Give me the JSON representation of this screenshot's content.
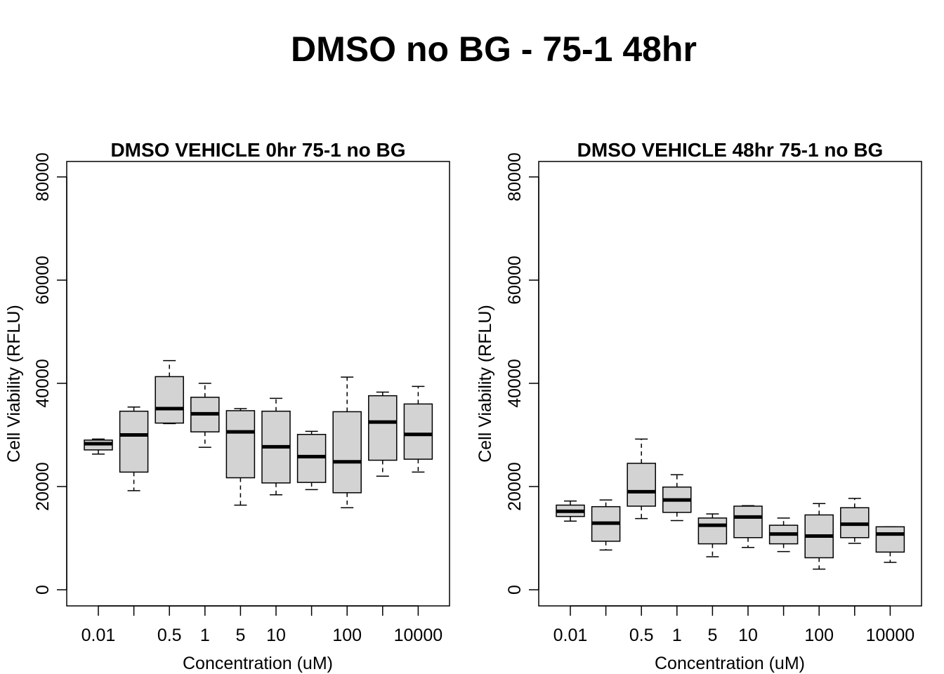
{
  "title": "DMSO no BG - 75-1 48hr",
  "chart_data": [
    {
      "type": "box",
      "title": "DMSO VEHICLE 0hr 75-1 no BG",
      "xlabel": "Concentration (uM)",
      "ylabel": "Cell Viability (RFLU)",
      "ylim": [
        0,
        80000
      ],
      "yticks": [
        0,
        20000,
        40000,
        60000,
        80000
      ],
      "x_tick_labels": [
        "0.01",
        "",
        "0.5",
        "1",
        "5",
        "10",
        "",
        "100",
        "",
        "10000"
      ],
      "boxes": [
        {
          "whisker_low": 26300,
          "q1": 27100,
          "median": 28300,
          "q3": 29000,
          "whisker_high": 29200
        },
        {
          "whisker_low": 19200,
          "q1": 22800,
          "median": 30000,
          "q3": 34600,
          "whisker_high": 35400
        },
        {
          "whisker_low": 32200,
          "q1": 32300,
          "median": 35100,
          "q3": 41300,
          "whisker_high": 44400
        },
        {
          "whisker_low": 27600,
          "q1": 30600,
          "median": 34100,
          "q3": 37300,
          "whisker_high": 40000
        },
        {
          "whisker_low": 16400,
          "q1": 21700,
          "median": 30600,
          "q3": 34700,
          "whisker_high": 35100
        },
        {
          "whisker_low": 18400,
          "q1": 20700,
          "median": 27700,
          "q3": 34600,
          "whisker_high": 37100
        },
        {
          "whisker_low": 19400,
          "q1": 20800,
          "median": 25800,
          "q3": 30100,
          "whisker_high": 30700
        },
        {
          "whisker_low": 15900,
          "q1": 18800,
          "median": 24800,
          "q3": 34500,
          "whisker_high": 41200
        },
        {
          "whisker_low": 22000,
          "q1": 25100,
          "median": 32500,
          "q3": 37600,
          "whisker_high": 38300
        },
        {
          "whisker_low": 22800,
          "q1": 25300,
          "median": 30100,
          "q3": 36000,
          "whisker_high": 39400
        }
      ]
    },
    {
      "type": "box",
      "title": "DMSO VEHICLE 48hr 75-1 no BG",
      "xlabel": "Concentration (uM)",
      "ylabel": "Cell Viability (RFLU)",
      "ylim": [
        0,
        80000
      ],
      "yticks": [
        0,
        20000,
        40000,
        60000,
        80000
      ],
      "x_tick_labels": [
        "0.01",
        "",
        "0.5",
        "1",
        "5",
        "10",
        "",
        "100",
        "",
        "10000"
      ],
      "boxes": [
        {
          "whisker_low": 13300,
          "q1": 14200,
          "median": 15200,
          "q3": 16400,
          "whisker_high": 17200
        },
        {
          "whisker_low": 7700,
          "q1": 9400,
          "median": 12900,
          "q3": 16100,
          "whisker_high": 17400
        },
        {
          "whisker_low": 13800,
          "q1": 16200,
          "median": 19000,
          "q3": 24500,
          "whisker_high": 29200
        },
        {
          "whisker_low": 13400,
          "q1": 15000,
          "median": 17400,
          "q3": 19900,
          "whisker_high": 22300
        },
        {
          "whisker_low": 6400,
          "q1": 8900,
          "median": 12500,
          "q3": 13900,
          "whisker_high": 14700
        },
        {
          "whisker_low": 8200,
          "q1": 10100,
          "median": 14100,
          "q3": 16200,
          "whisker_high": 16300
        },
        {
          "whisker_low": 7400,
          "q1": 8900,
          "median": 10800,
          "q3": 12500,
          "whisker_high": 13900
        },
        {
          "whisker_low": 4000,
          "q1": 6200,
          "median": 10400,
          "q3": 14500,
          "whisker_high": 16700
        },
        {
          "whisker_low": 9000,
          "q1": 10100,
          "median": 12700,
          "q3": 15900,
          "whisker_high": 17700
        },
        {
          "whisker_low": 5300,
          "q1": 7300,
          "median": 10800,
          "q3": 12200,
          "whisker_high": 12200
        }
      ]
    }
  ]
}
